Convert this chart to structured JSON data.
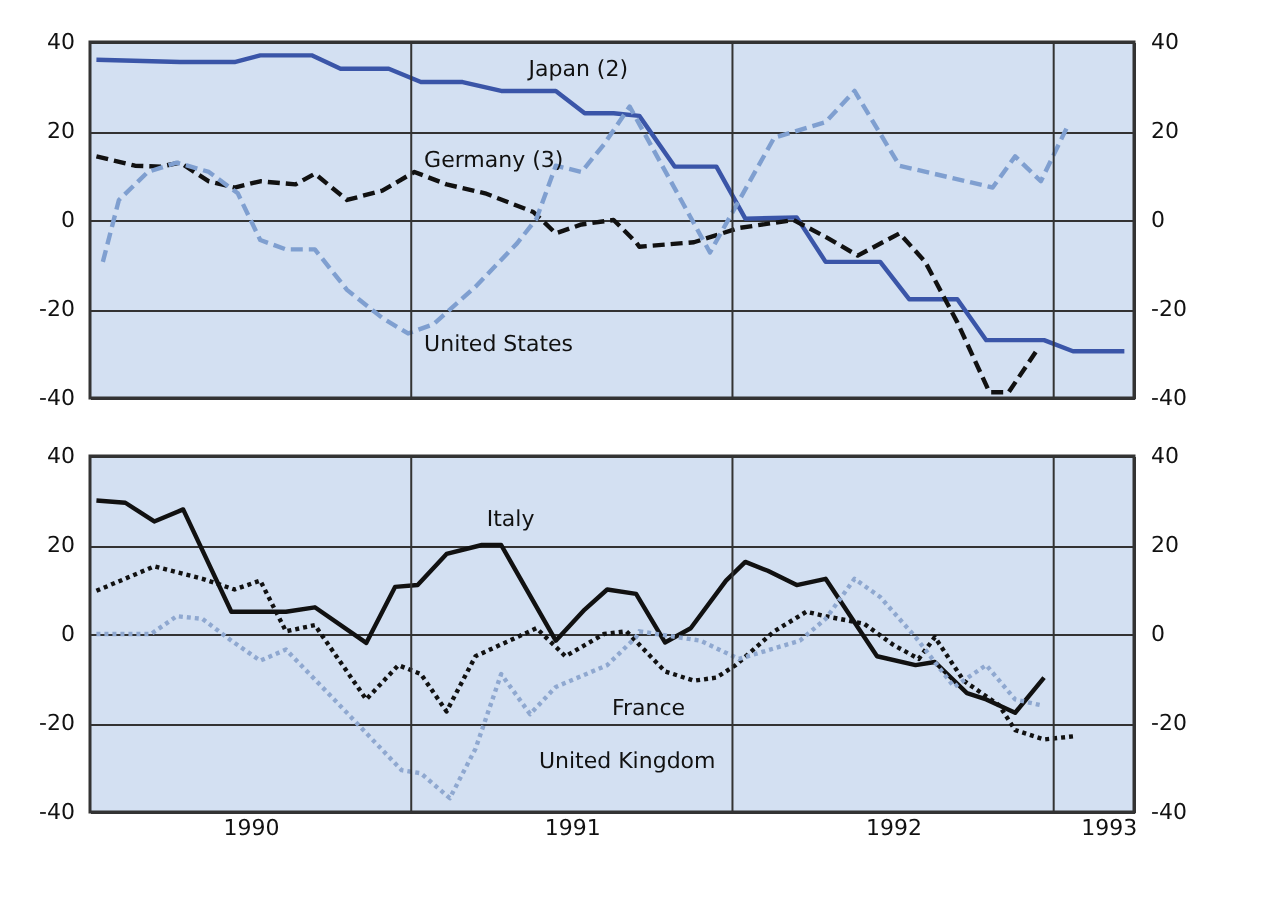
{
  "chart_data": [
    {
      "type": "line",
      "xlim": [
        1990.0,
        1993.25
      ],
      "xticks": [
        {
          "value": 1991,
          "label": null
        },
        {
          "value": 1992,
          "label": null
        },
        {
          "value": 1993,
          "label": null
        }
      ],
      "ylim": [
        -40,
        40
      ],
      "yticks": [
        -40,
        -20,
        0,
        20,
        40
      ],
      "y2lim": [
        -40,
        40
      ],
      "y2ticks": [
        -40,
        -20,
        0,
        20,
        40
      ],
      "grid": true,
      "tick_labels": "y",
      "series": [
        {
          "name": "Japan (2)",
          "color": "#3a55a8",
          "line_style": "solid",
          "x": [
            1990.02,
            1990.28,
            1990.45,
            1990.53,
            1990.69,
            1990.78,
            1990.93,
            1991.03,
            1991.16,
            1991.28,
            1991.45,
            1991.54,
            1991.63,
            1991.71,
            1991.82,
            1991.95,
            1992.04,
            1992.2,
            1992.29,
            1992.46,
            1992.55,
            1992.7,
            1992.79,
            1992.97,
            1993.06,
            1993.22
          ],
          "values": [
            36,
            35.5,
            35.5,
            37,
            37,
            34,
            34,
            31,
            31,
            29,
            29,
            24,
            24,
            23.4,
            12,
            12,
            0.3,
            0.6,
            -9.4,
            -9.4,
            -17.8,
            -17.8,
            -27,
            -27,
            -29.5,
            -29.5
          ]
        },
        {
          "name": "Germany (3)",
          "color": "#111111",
          "line_style": "dashed",
          "x": [
            1990.02,
            1990.14,
            1990.22,
            1990.28,
            1990.37,
            1990.45,
            1990.53,
            1990.64,
            1990.7,
            1990.8,
            1990.91,
            1991.01,
            1991.11,
            1991.23,
            1991.38,
            1991.45,
            1991.53,
            1991.63,
            1991.7,
            1991.71,
            1991.88,
            1992.02,
            1992.19,
            1992.29,
            1992.39,
            1992.52,
            1992.6,
            1992.7,
            1992.8,
            1992.86,
            1992.95
          ],
          "values": [
            14.3,
            12.2,
            12,
            12.9,
            8.7,
            7.3,
            8.7,
            8,
            10.4,
            4.5,
            6.6,
            10.8,
            8,
            6,
            1.8,
            -3,
            -1,
            0,
            -5,
            -6,
            -5,
            -1.8,
            0,
            -3.8,
            -8,
            -3,
            -9.4,
            -23,
            -38.7,
            -38.7,
            -29
          ]
        },
        {
          "name": "United States",
          "color": "#7f9fd0",
          "line_style": "dashed",
          "x": [
            1990.04,
            1990.09,
            1990.18,
            1990.27,
            1990.37,
            1990.46,
            1990.53,
            1990.61,
            1990.7,
            1990.8,
            1990.91,
            1990.99,
            1991.07,
            1991.2,
            1991.33,
            1991.39,
            1991.45,
            1991.53,
            1991.6,
            1991.68,
            1991.84,
            1991.93,
            1992.13,
            1992.29,
            1992.38,
            1992.52,
            1992.81,
            1992.88,
            1992.96,
            1993.04
          ],
          "values": [
            -9.4,
            4.5,
            10.8,
            12.9,
            10.8,
            6,
            -4.5,
            -6.6,
            -6.6,
            -15.7,
            -22,
            -25.5,
            -23.4,
            -15,
            -5.2,
            0.3,
            12.2,
            10.8,
            17,
            25.5,
            4.5,
            -7.3,
            18.5,
            22,
            29,
            12.2,
            7.3,
            14.3,
            8.7,
            20.6
          ]
        }
      ]
    },
    {
      "type": "line",
      "xlim": [
        1990.0,
        1993.25
      ],
      "xticks": [
        {
          "value": 1990.5,
          "label": "1990"
        },
        {
          "value": 1991,
          "label": null
        },
        {
          "value": 1991.5,
          "label": "1991"
        },
        {
          "value": 1992,
          "label": null
        },
        {
          "value": 1992.5,
          "label": "1992"
        },
        {
          "value": 1993,
          "label": null
        },
        {
          "value": 1993.17,
          "label": "1993"
        }
      ],
      "ylim": [
        -40,
        40
      ],
      "yticks": [
        -40,
        -20,
        0,
        20,
        40
      ],
      "y2lim": [
        -40,
        40
      ],
      "y2ticks": [
        -40,
        -20,
        0,
        20,
        40
      ],
      "grid": true,
      "series": [
        {
          "name": "Italy",
          "color": "#111111",
          "line_style": "solid",
          "x": [
            1990.02,
            1990.11,
            1990.2,
            1990.29,
            1990.44,
            1990.61,
            1990.7,
            1990.86,
            1990.95,
            1991.02,
            1991.11,
            1991.22,
            1991.28,
            1991.45,
            1991.54,
            1991.61,
            1991.7,
            1991.79,
            1991.87,
            1991.98,
            1992.04,
            1992.11,
            1992.2,
            1992.29,
            1992.45,
            1992.57,
            1992.63,
            1992.73,
            1992.79,
            1992.88,
            1992.97
          ],
          "values": [
            30,
            29.5,
            25.3,
            28,
            5,
            5,
            6,
            -2,
            10.6,
            11,
            18,
            20,
            20,
            -1.5,
            5.5,
            10,
            9,
            -1.9,
            1.3,
            12,
            16.2,
            14.2,
            11,
            12.4,
            -5,
            -7,
            -6.3,
            -13.3,
            -14.7,
            -17.7,
            -9.8
          ]
        },
        {
          "name": "France",
          "color": "#111111",
          "line_style": "dotted",
          "x": [
            1990.02,
            1990.2,
            1990.35,
            1990.45,
            1990.53,
            1990.61,
            1990.7,
            1990.86,
            1990.96,
            1991.03,
            1991.11,
            1991.2,
            1991.39,
            1991.48,
            1991.6,
            1991.67,
            1991.79,
            1991.88,
            1991.95,
            1992.01,
            1992.13,
            1992.23,
            1992.29,
            1992.41,
            1992.5,
            1992.58,
            1992.63,
            1992.72,
            1992.83,
            1992.88,
            1992.97,
            1993.06
          ],
          "values": [
            9.7,
            15.2,
            12.4,
            10,
            12,
            0.6,
            2,
            -14.7,
            -7,
            -9,
            -17.4,
            -5,
            1.3,
            -5,
            0,
            0.6,
            -8.4,
            -10.5,
            -9.8,
            -7,
            0.6,
            5,
            4,
            2.3,
            -2.4,
            -5.6,
            -0.7,
            -10.5,
            -16,
            -21.6,
            -23.7,
            -23
          ]
        },
        {
          "name": "United Kingdom",
          "color": "#8fa8d0",
          "line_style": "dotted",
          "x": [
            1990.02,
            1990.19,
            1990.27,
            1990.35,
            1990.44,
            1990.53,
            1990.61,
            1990.76,
            1990.97,
            1991.03,
            1991.12,
            1991.2,
            1991.28,
            1991.37,
            1991.45,
            1991.61,
            1991.7,
            1991.71,
            1991.9,
            1992.02,
            1992.21,
            1992.29,
            1992.38,
            1992.46,
            1992.57,
            1992.69,
            1992.79,
            1992.88,
            1992.96
          ],
          "values": [
            0,
            0,
            4,
            3.4,
            -1.5,
            -6,
            -3.5,
            -14.7,
            -30.6,
            -31.3,
            -36.9,
            -25.8,
            -9,
            -18,
            -11.9,
            -7,
            -0.7,
            0.6,
            -1.5,
            -5.6,
            -1.5,
            3.4,
            12.4,
            8.3,
            -0.7,
            -11.9,
            -7,
            -14.7,
            -16
          ]
        }
      ]
    }
  ]
}
